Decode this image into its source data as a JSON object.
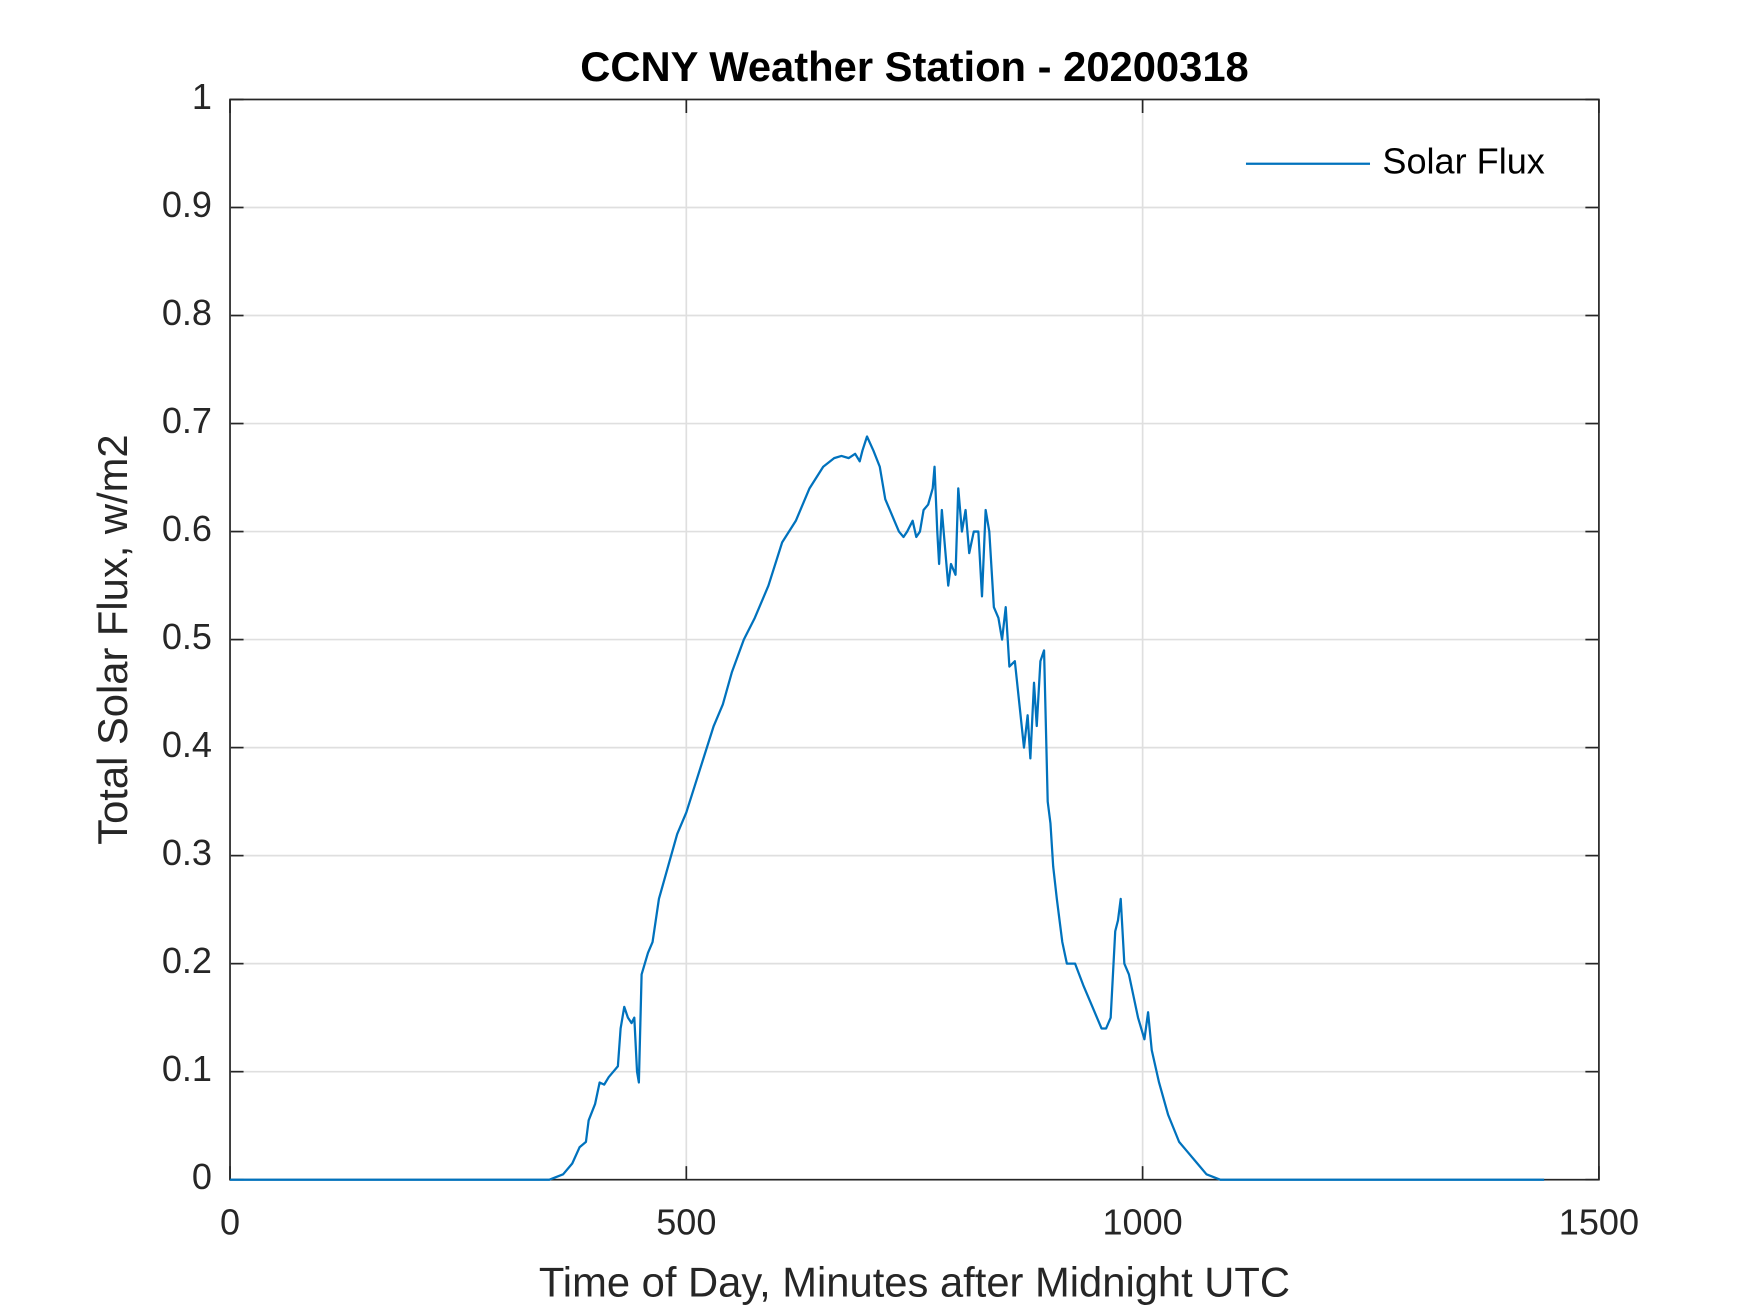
{
  "chart_data": {
    "type": "line",
    "title": "CCNY Weather Station - 20200318",
    "xlabel": "Time of Day, Minutes after Midnight UTC",
    "ylabel": "Total Solar Flux, w/m2",
    "x": [
      0,
      350,
      365,
      375,
      383,
      390,
      393,
      400,
      405,
      410,
      415,
      420,
      425,
      428,
      432,
      436,
      440,
      443,
      446,
      448,
      451,
      458,
      463,
      470,
      480,
      490,
      500,
      515,
      530,
      540,
      550,
      563,
      575,
      590,
      605,
      620,
      635,
      650,
      662,
      670,
      678,
      685,
      690,
      693,
      698,
      705,
      712,
      718,
      723,
      728,
      733,
      738,
      742,
      748,
      752,
      756,
      760,
      765,
      770,
      772,
      775,
      777,
      780,
      784,
      787,
      790,
      795,
      798,
      802,
      806,
      810,
      815,
      820,
      824,
      828,
      832,
      837,
      842,
      846,
      850,
      854,
      860,
      865,
      870,
      874,
      877,
      881,
      884,
      888,
      892,
      896,
      899,
      902,
      906,
      912,
      917,
      926,
      935,
      945,
      955,
      960,
      965,
      970,
      973,
      976,
      980,
      985,
      990,
      995,
      1002,
      1006,
      1010,
      1018,
      1028,
      1040,
      1050,
      1060,
      1070,
      1085,
      1440
    ],
    "series": [
      {
        "name": "Solar Flux",
        "color": "#0072bd",
        "values": [
          0,
          0,
          0.005,
          0.015,
          0.03,
          0.035,
          0.055,
          0.07,
          0.09,
          0.088,
          0.095,
          0.1,
          0.105,
          0.14,
          0.16,
          0.15,
          0.145,
          0.15,
          0.1,
          0.09,
          0.19,
          0.21,
          0.22,
          0.26,
          0.29,
          0.32,
          0.34,
          0.38,
          0.42,
          0.44,
          0.47,
          0.5,
          0.52,
          0.55,
          0.59,
          0.61,
          0.64,
          0.66,
          0.668,
          0.67,
          0.668,
          0.672,
          0.665,
          0.675,
          0.688,
          0.675,
          0.66,
          0.63,
          0.62,
          0.61,
          0.6,
          0.595,
          0.6,
          0.61,
          0.595,
          0.6,
          0.62,
          0.625,
          0.64,
          0.66,
          0.6,
          0.57,
          0.62,
          0.58,
          0.55,
          0.57,
          0.56,
          0.64,
          0.6,
          0.62,
          0.58,
          0.6,
          0.6,
          0.54,
          0.62,
          0.6,
          0.53,
          0.52,
          0.5,
          0.53,
          0.475,
          0.48,
          0.44,
          0.4,
          0.43,
          0.39,
          0.46,
          0.42,
          0.48,
          0.49,
          0.35,
          0.33,
          0.29,
          0.26,
          0.22,
          0.2,
          0.2,
          0.18,
          0.16,
          0.14,
          0.14,
          0.15,
          0.23,
          0.24,
          0.26,
          0.2,
          0.19,
          0.17,
          0.15,
          0.13,
          0.155,
          0.12,
          0.09,
          0.06,
          0.035,
          0.025,
          0.015,
          0.005,
          0,
          0
        ]
      }
    ],
    "xlim": [
      0,
      1500
    ],
    "xticks": [
      0,
      500,
      1000,
      1500
    ],
    "ylim": [
      0,
      1
    ],
    "yticks": [
      0,
      0.1,
      0.2,
      0.3,
      0.4,
      0.5,
      0.6,
      0.7,
      0.8,
      0.9,
      1
    ],
    "grid": true,
    "legend": "upper right"
  }
}
